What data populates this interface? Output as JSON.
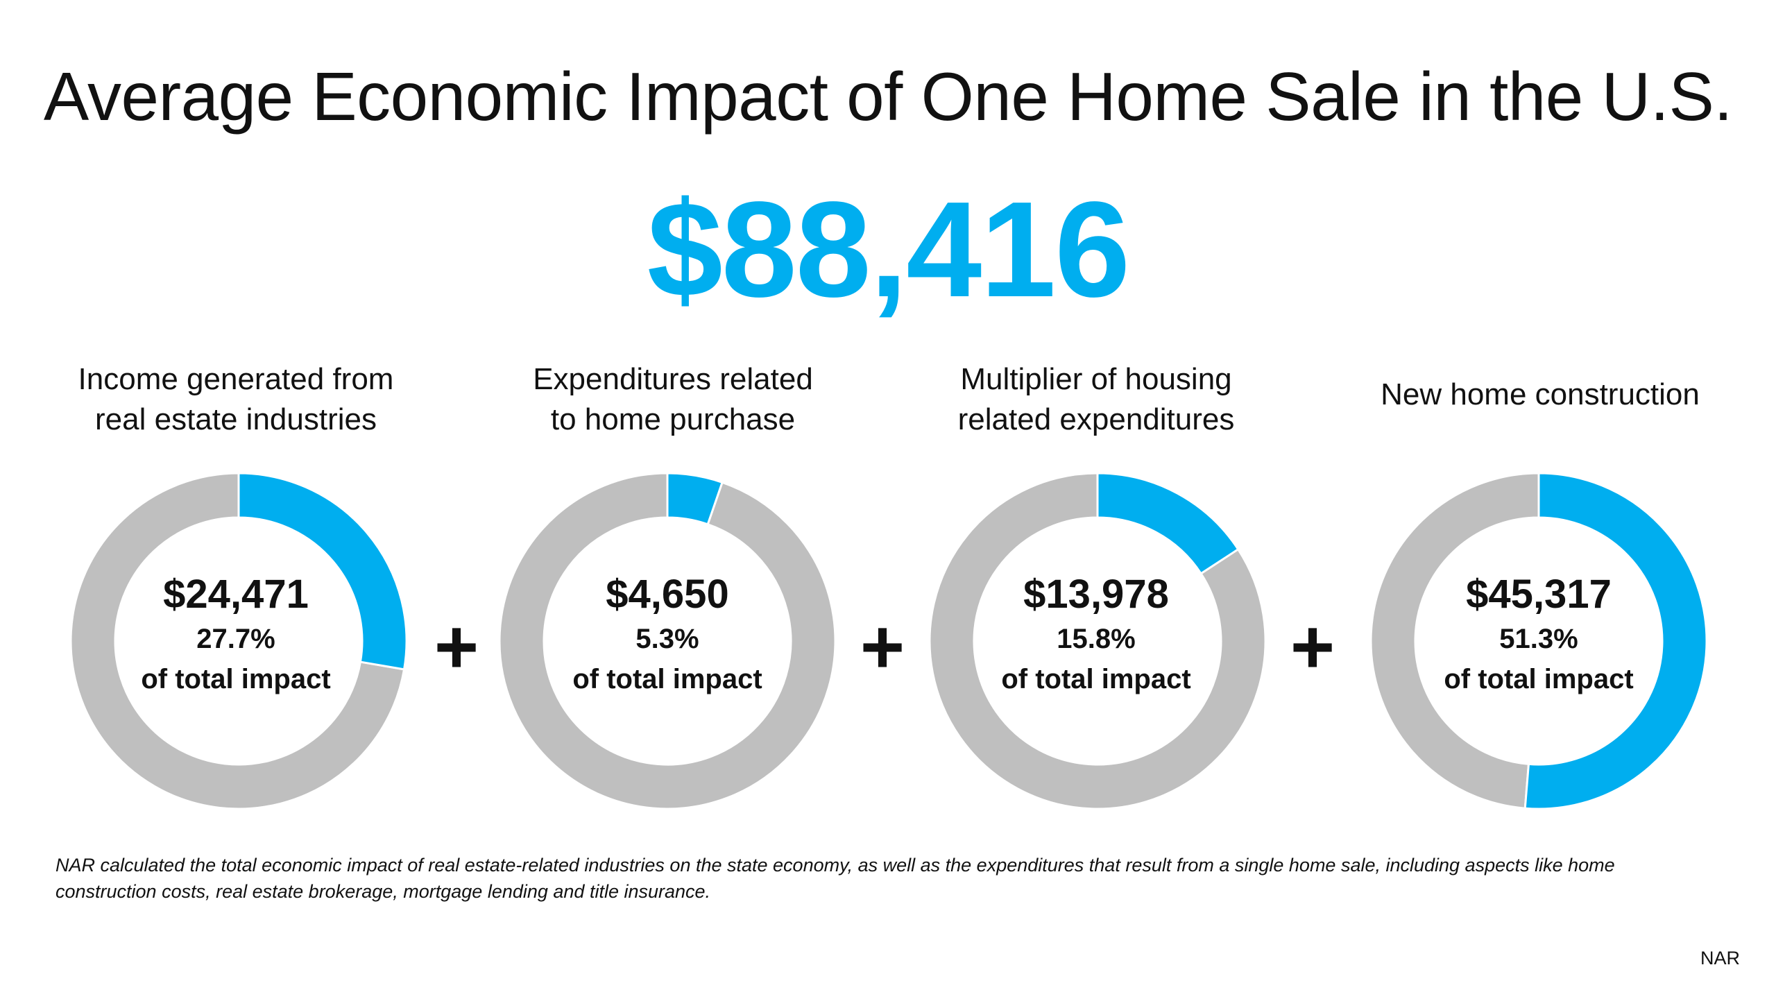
{
  "title": "Average Economic Impact of One Home Sale in the U.S.",
  "total": "$88,416",
  "operator": "+",
  "footnote": "NAR calculated the total economic impact of real estate-related industries on the state economy, as well as the expenditures that result from a single home sale, including aspects like home construction costs, real estate brokerage, mortgage lending and title insurance.",
  "source": "NAR",
  "colors": {
    "highlight": "#00AEEF",
    "remainder": "#BFBFBF",
    "text": "#111111"
  },
  "chart_data": [
    {
      "type": "pie",
      "label_lines": [
        "Income generated from",
        "real estate industries"
      ],
      "value_label": "$24,471",
      "percent_label": "27.7%",
      "sub_label": "of total impact",
      "value": 24471,
      "percent": 27.7
    },
    {
      "type": "pie",
      "label_lines": [
        "Expenditures related",
        "to home purchase"
      ],
      "value_label": "$4,650",
      "percent_label": "5.3%",
      "sub_label": "of total impact",
      "value": 4650,
      "percent": 5.3
    },
    {
      "type": "pie",
      "label_lines": [
        "Multiplier of housing",
        "related expenditures"
      ],
      "value_label": "$13,978",
      "percent_label": "15.8%",
      "sub_label": "of total impact",
      "value": 13978,
      "percent": 15.8
    },
    {
      "type": "pie",
      "label_lines": [
        "New home construction"
      ],
      "value_label": "$45,317",
      "percent_label": "51.3%",
      "sub_label": "of total impact",
      "value": 45317,
      "percent": 51.3
    }
  ]
}
